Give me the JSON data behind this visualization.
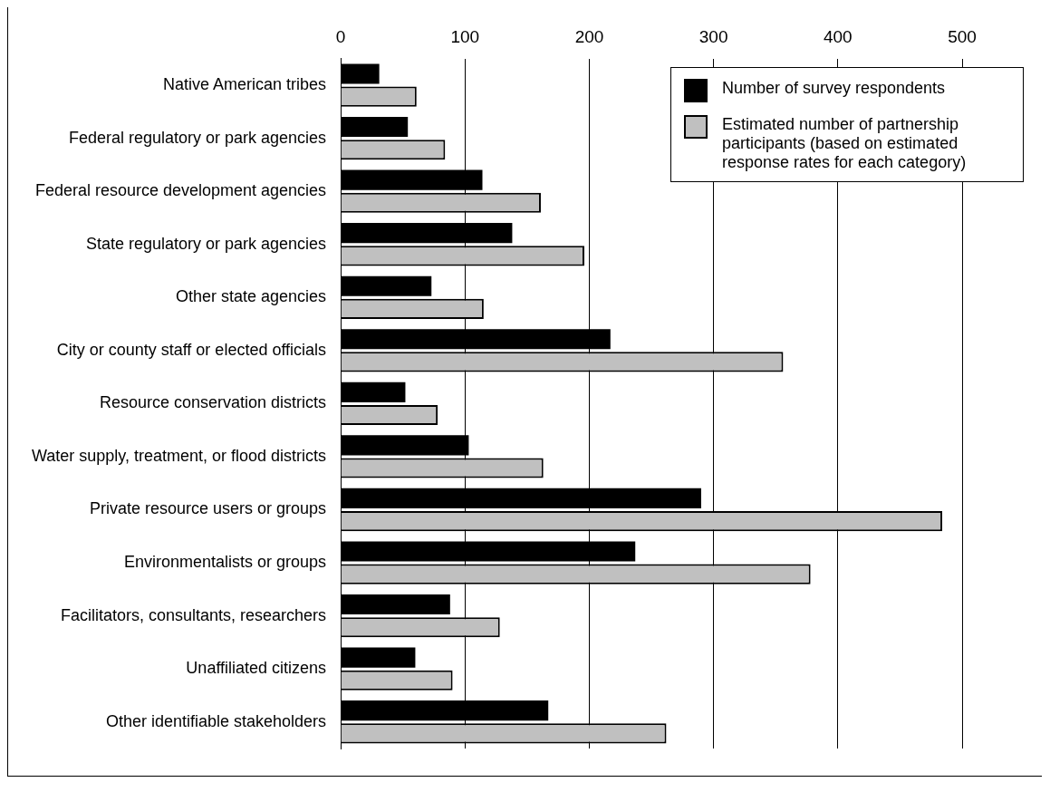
{
  "chart_data": {
    "type": "bar",
    "orientation": "horizontal",
    "categories": [
      "Native American tribes",
      "Federal regulatory or park agencies",
      "Federal resource development agencies",
      "State regulatory or park agencies",
      "Other state agencies",
      "City or county staff or elected officials",
      "Resource conservation districts",
      "Water supply, treatment, or flood districts",
      "Private resource users or groups",
      "Environmentalists or groups",
      "Facilitators, consultants, researchers",
      "Unaffiliated citizens",
      "Other identifiable stakeholders"
    ],
    "series": [
      {
        "name": "Number of survey respondents",
        "color": "#000000",
        "values": [
          31,
          54,
          114,
          138,
          73,
          217,
          52,
          103,
          290,
          237,
          88,
          60,
          167
        ]
      },
      {
        "name": "Estimated number of partnership participants (based on estimated response rates for each category)",
        "color": "#c0c0c0",
        "values": [
          61,
          84,
          161,
          196,
          115,
          356,
          78,
          163,
          484,
          378,
          128,
          90,
          262
        ]
      }
    ],
    "xlim": [
      0,
      500
    ],
    "xticks": [
      0,
      100,
      200,
      300,
      400,
      500
    ],
    "grid": "x",
    "legend": "top right"
  }
}
